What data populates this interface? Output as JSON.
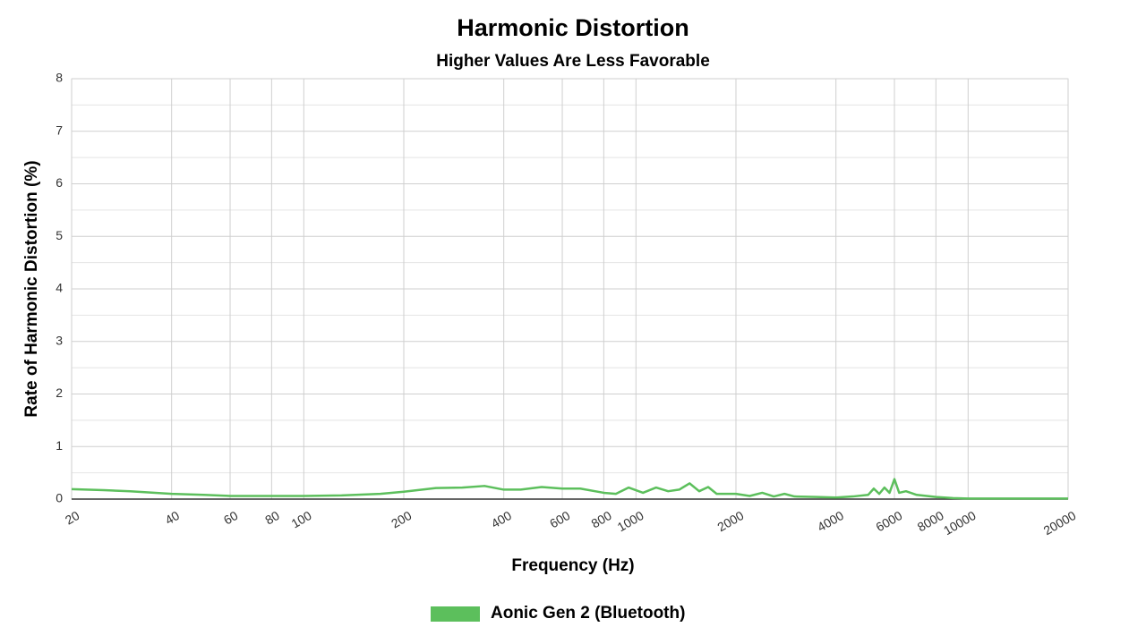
{
  "chart_data": {
    "type": "line",
    "title": "Harmonic Distortion",
    "subtitle": "Higher Values Are Less Favorable",
    "x_label": "Frequency (Hz)",
    "y_label": "Rate of Harmonic Distortion (%)",
    "x_log": true,
    "grid": true,
    "xlim": [
      20,
      20000
    ],
    "xticks": [
      20,
      40,
      60,
      80,
      100,
      200,
      400,
      600,
      800,
      1000,
      2000,
      4000,
      6000,
      8000,
      10000,
      20000
    ],
    "ylim": [
      0,
      8
    ],
    "yticks": [
      0,
      1,
      2,
      3,
      4,
      5,
      6,
      7,
      8
    ],
    "yminor_ticks": [
      0.5,
      1.5,
      2.5,
      3.5,
      4.5,
      5.5,
      6.5,
      7.5
    ],
    "x": [
      20,
      25,
      30,
      40,
      50,
      60,
      80,
      100,
      130,
      170,
      200,
      250,
      300,
      350,
      400,
      450,
      520,
      600,
      680,
      800,
      870,
      950,
      1050,
      1150,
      1250,
      1350,
      1450,
      1550,
      1650,
      1750,
      1900,
      2000,
      2200,
      2400,
      2600,
      2800,
      3000,
      3500,
      4000,
      4500,
      5000,
      5200,
      5400,
      5600,
      5800,
      6000,
      6200,
      6500,
      7000,
      8000,
      9000,
      10000,
      15000,
      20000
    ],
    "series": [
      {
        "name": "Aonic Gen 2 (Bluetooth)",
        "color": "#5cbf5c",
        "values": [
          0.19,
          0.17,
          0.15,
          0.1,
          0.08,
          0.06,
          0.06,
          0.06,
          0.07,
          0.1,
          0.14,
          0.21,
          0.22,
          0.25,
          0.18,
          0.18,
          0.23,
          0.2,
          0.2,
          0.12,
          0.1,
          0.22,
          0.12,
          0.22,
          0.15,
          0.18,
          0.3,
          0.15,
          0.23,
          0.1,
          0.1,
          0.1,
          0.06,
          0.12,
          0.05,
          0.1,
          0.05,
          0.04,
          0.03,
          0.05,
          0.08,
          0.2,
          0.1,
          0.22,
          0.12,
          0.38,
          0.12,
          0.15,
          0.08,
          0.04,
          0.02,
          0.01,
          0.01,
          0.01
        ]
      }
    ]
  }
}
